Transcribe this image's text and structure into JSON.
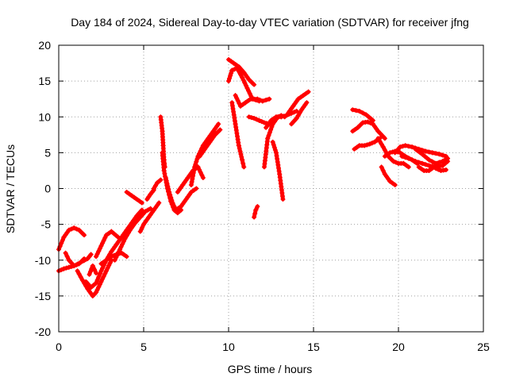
{
  "chart_data": {
    "type": "scatter",
    "title": "Day 184 of 2024, Sidereal Day-to-day VTEC variation (SDTVAR) for receiver jfng",
    "xlabel": "GPS time / hours",
    "ylabel": "SDTVAR / TECUs",
    "xlim": [
      0,
      25
    ],
    "ylim": [
      -20,
      20
    ],
    "xticks": [
      0,
      5,
      10,
      15,
      20,
      25
    ],
    "yticks": [
      -20,
      -15,
      -10,
      -5,
      0,
      5,
      10,
      15,
      20
    ],
    "grid": true,
    "marker": "+",
    "series_color": "#ff0000",
    "segments": [
      {
        "x": [
          0.0,
          0.3,
          0.6,
          0.9,
          1.2,
          1.5
        ],
        "y": [
          -8.5,
          -6.8,
          -5.8,
          -5.5,
          -5.8,
          -6.5
        ]
      },
      {
        "x": [
          0.0,
          0.3,
          0.6,
          0.9,
          1.3,
          1.7,
          1.9
        ],
        "y": [
          -11.5,
          -11.2,
          -11.0,
          -10.8,
          -10.3,
          -9.8,
          -9.2
        ]
      },
      {
        "x": [
          0.4,
          0.6,
          0.9,
          1.2,
          1.5
        ],
        "y": [
          -9.0,
          -10.0,
          -10.8,
          -10.5,
          -9.8
        ]
      },
      {
        "x": [
          1.1,
          1.4,
          1.7,
          2.0,
          2.2,
          2.5,
          2.8,
          3.1
        ],
        "y": [
          -11.5,
          -12.8,
          -14.0,
          -15.0,
          -14.5,
          -13.0,
          -11.5,
          -10.0
        ]
      },
      {
        "x": [
          1.6,
          1.9,
          2.2,
          2.5,
          2.8,
          3.1,
          3.4,
          3.7,
          4.0,
          4.3,
          4.6,
          4.9
        ],
        "y": [
          -13.0,
          -13.8,
          -13.2,
          -11.5,
          -10.0,
          -8.8,
          -7.8,
          -6.8,
          -5.8,
          -4.8,
          -3.8,
          -3.0
        ]
      },
      {
        "x": [
          1.8,
          2.0,
          2.2
        ],
        "y": [
          -12.0,
          -10.8,
          -11.8
        ]
      },
      {
        "x": [
          2.2,
          2.5,
          2.8,
          3.1,
          3.5
        ],
        "y": [
          -9.5,
          -8.0,
          -6.5,
          -6.0,
          -6.8
        ]
      },
      {
        "x": [
          2.5,
          2.8,
          3.1,
          3.4,
          3.7,
          4.0
        ],
        "y": [
          -10.5,
          -10.0,
          -9.5,
          -9.2,
          -9.0,
          -9.5
        ]
      },
      {
        "x": [
          3.3,
          3.6,
          3.9,
          4.2,
          4.5,
          4.8,
          5.1,
          5.4
        ],
        "y": [
          -10.0,
          -8.5,
          -7.0,
          -5.8,
          -4.8,
          -4.0,
          -3.2,
          -2.8
        ]
      },
      {
        "x": [
          4.0,
          4.3,
          4.6,
          4.9
        ],
        "y": [
          -0.5,
          -1.0,
          -1.5,
          -2.0
        ]
      },
      {
        "x": [
          4.8,
          5.0,
          5.3,
          5.6,
          5.9
        ],
        "y": [
          -6.0,
          -5.0,
          -4.0,
          -3.0,
          -2.0
        ]
      },
      {
        "x": [
          5.2,
          5.4,
          5.6
        ],
        "y": [
          -1.5,
          -0.8,
          -0.2
        ]
      },
      {
        "x": [
          5.6,
          5.8,
          6.0
        ],
        "y": [
          0.0,
          0.8,
          1.2
        ]
      },
      {
        "x": [
          6.0,
          6.1,
          6.15,
          6.2,
          6.25
        ],
        "y": [
          10.0,
          8.0,
          6.0,
          4.0,
          3.0
        ]
      },
      {
        "x": [
          6.1,
          6.2,
          6.4,
          6.6,
          6.8,
          7.0,
          7.2
        ],
        "y": [
          5.0,
          2.5,
          0.0,
          -1.8,
          -3.0,
          -3.4,
          -3.0
        ]
      },
      {
        "x": [
          6.3,
          6.5,
          6.7,
          6.9,
          7.2,
          7.5,
          7.8,
          8.1
        ],
        "y": [
          1.5,
          -0.5,
          -2.0,
          -3.0,
          -2.5,
          -1.5,
          -0.5,
          0.0
        ]
      },
      {
        "x": [
          7.0,
          7.3,
          7.6,
          7.9,
          8.2,
          8.5
        ],
        "y": [
          -0.5,
          0.5,
          1.5,
          2.5,
          3.0,
          1.5
        ]
      },
      {
        "x": [
          7.8,
          8.0,
          8.2,
          8.5,
          8.8,
          9.1,
          9.4
        ],
        "y": [
          0.5,
          3.0,
          4.5,
          6.0,
          7.0,
          8.0,
          9.0
        ]
      },
      {
        "x": [
          8.3,
          8.6,
          8.9,
          9.2,
          9.5
        ],
        "y": [
          4.5,
          5.5,
          6.5,
          7.5,
          8.2
        ]
      },
      {
        "x": [
          10.0,
          10.3,
          10.6,
          10.9,
          11.2,
          11.5
        ],
        "y": [
          18.0,
          17.5,
          17.0,
          16.2,
          15.2,
          14.5
        ]
      },
      {
        "x": [
          10.0,
          10.2,
          10.5,
          10.8,
          11.1,
          11.4,
          11.8
        ],
        "y": [
          15.0,
          16.5,
          16.8,
          15.5,
          14.0,
          12.5,
          12.2
        ]
      },
      {
        "x": [
          10.2,
          10.4,
          10.6,
          10.8,
          10.9
        ],
        "y": [
          12.0,
          9.0,
          6.0,
          4.0,
          3.0
        ]
      },
      {
        "x": [
          10.4,
          10.7,
          11.0,
          11.3,
          11.7,
          12.0,
          12.4
        ],
        "y": [
          13.0,
          11.5,
          12.0,
          12.5,
          12.5,
          12.2,
          12.5
        ]
      },
      {
        "x": [
          11.2,
          11.5,
          11.8,
          12.1,
          12.4
        ],
        "y": [
          10.0,
          9.8,
          9.5,
          9.2,
          9.0
        ]
      },
      {
        "x": [
          11.5,
          11.6,
          11.7
        ],
        "y": [
          -4.0,
          -3.0,
          -2.5
        ]
      },
      {
        "x": [
          12.1,
          12.3,
          12.6,
          12.9,
          13.1,
          13.3
        ],
        "y": [
          3.0,
          7.0,
          9.0,
          10.0,
          10.2,
          10.0
        ]
      },
      {
        "x": [
          12.6,
          12.8,
          13.0,
          13.2
        ],
        "y": [
          6.5,
          5.0,
          2.0,
          -1.5
        ]
      },
      {
        "x": [
          12.2,
          12.5,
          12.8,
          13.1,
          13.4,
          13.7,
          14.0
        ],
        "y": [
          8.5,
          9.5,
          10.0,
          10.0,
          10.2,
          10.5,
          10.8
        ]
      },
      {
        "x": [
          13.5,
          13.8,
          14.1,
          14.4,
          14.7
        ],
        "y": [
          10.5,
          11.5,
          12.5,
          13.0,
          13.5
        ]
      },
      {
        "x": [
          13.7,
          14.0,
          14.3,
          14.6
        ],
        "y": [
          9.0,
          9.8,
          11.0,
          12.0
        ]
      },
      {
        "x": [
          17.3,
          17.7,
          18.1,
          18.5
        ],
        "y": [
          11.0,
          10.8,
          10.3,
          9.5
        ]
      },
      {
        "x": [
          17.3,
          17.6,
          17.9,
          18.2,
          18.5,
          18.8,
          19.2
        ],
        "y": [
          8.0,
          8.5,
          9.2,
          9.3,
          9.0,
          8.0,
          7.0
        ]
      },
      {
        "x": [
          17.4,
          17.7,
          18.0,
          18.3,
          18.6,
          18.9
        ],
        "y": [
          5.5,
          6.0,
          6.0,
          6.2,
          6.5,
          7.0
        ]
      },
      {
        "x": [
          18.8,
          19.1,
          19.4,
          19.7,
          20.0,
          20.3,
          20.6
        ],
        "y": [
          7.0,
          5.8,
          4.5,
          3.8,
          3.5,
          3.5,
          3.0
        ]
      },
      {
        "x": [
          19.2,
          19.5,
          19.8,
          20.1,
          20.4,
          20.8,
          21.1
        ],
        "y": [
          4.5,
          5.0,
          5.2,
          5.0,
          4.5,
          4.0,
          3.5
        ]
      },
      {
        "x": [
          19.8,
          20.1,
          20.4,
          20.8,
          21.2,
          21.6,
          22.0,
          22.4,
          22.8
        ],
        "y": [
          5.0,
          5.8,
          6.0,
          5.8,
          5.5,
          5.2,
          5.0,
          4.8,
          4.5
        ]
      },
      {
        "x": [
          20.2,
          20.6,
          21.0,
          21.4,
          21.8,
          22.2,
          22.6,
          22.9
        ],
        "y": [
          4.5,
          4.2,
          3.8,
          3.5,
          3.2,
          3.0,
          3.2,
          3.8
        ]
      },
      {
        "x": [
          21.0,
          21.4,
          21.8,
          22.2,
          22.6,
          22.9
        ],
        "y": [
          5.5,
          4.8,
          4.0,
          3.5,
          3.8,
          4.2
        ]
      },
      {
        "x": [
          21.2,
          21.5,
          21.8,
          22.1
        ],
        "y": [
          3.0,
          2.5,
          2.5,
          3.0
        ]
      },
      {
        "x": [
          22.2,
          22.5,
          22.8
        ],
        "y": [
          2.8,
          2.5,
          2.6
        ]
      },
      {
        "x": [
          19.0,
          19.2,
          19.5,
          19.8
        ],
        "y": [
          3.0,
          2.0,
          1.0,
          0.5
        ]
      }
    ]
  }
}
